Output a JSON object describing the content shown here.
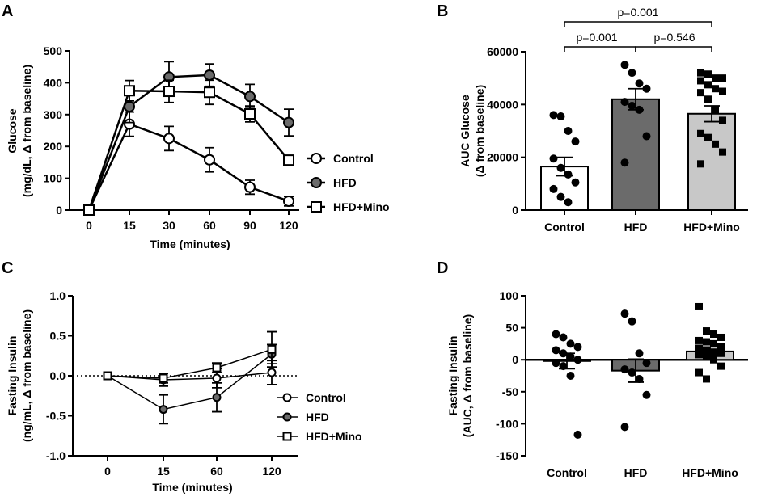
{
  "chart_data": [
    {
      "panel": "A",
      "type": "line",
      "x": [
        0,
        15,
        30,
        60,
        90,
        120
      ],
      "xticks": [
        "0",
        "15",
        "30",
        "60",
        "90",
        "120"
      ],
      "xlabel": "Time (minutes)",
      "ylabel": [
        "Glucose",
        "(mg/dL, Δ from baseline)"
      ],
      "ylim": [
        0,
        500
      ],
      "yticks": [
        0,
        100,
        200,
        300,
        400,
        500
      ],
      "series": [
        {
          "name": "Control",
          "marker": "circle-open",
          "values": [
            0,
            270,
            225,
            158,
            72,
            28
          ],
          "errors": [
            0,
            38,
            38,
            38,
            22,
            15
          ]
        },
        {
          "name": "HFD",
          "marker": "circle-filled",
          "values": [
            0,
            325,
            418,
            424,
            357,
            275
          ],
          "errors": [
            0,
            50,
            48,
            35,
            38,
            42
          ]
        },
        {
          "name": "HFD+Mino",
          "marker": "square-open",
          "values": [
            0,
            375,
            373,
            370,
            302,
            157
          ],
          "errors": [
            0,
            32,
            35,
            38,
            25,
            15
          ]
        }
      ]
    },
    {
      "panel": "B",
      "type": "bar",
      "categories": [
        "Control",
        "HFD",
        "HFD+Mino"
      ],
      "ylabel": [
        "AUC Glucose",
        "(Δ from baseline)"
      ],
      "ylim": [
        0,
        60000
      ],
      "yticks": [
        "0",
        "20000",
        "40000",
        "60000"
      ],
      "means": [
        16500,
        42000,
        36500
      ],
      "sems": [
        3500,
        4000,
        3000
      ],
      "bar_colors": [
        "#ffffff",
        "#6b6b6b",
        "#c8c8c8"
      ],
      "points": [
        [
          36000,
          35500,
          30000,
          26000,
          19500,
          16000,
          13500,
          10500,
          8000,
          5000,
          3000
        ],
        [
          55000,
          52000,
          48000,
          46000,
          41000,
          39500,
          38000,
          28000,
          18000
        ],
        [
          52000,
          51500,
          50000,
          50000,
          49000,
          47500,
          46000,
          45000,
          44500,
          42000,
          38000,
          34000,
          29000,
          27500,
          25000,
          22000,
          17500
        ]
      ],
      "comparisons": [
        {
          "groups": [
            "Control",
            "HFD+Mino"
          ],
          "label": "p=0.001"
        },
        {
          "groups": [
            "Control",
            "HFD"
          ],
          "label": "p=0.001"
        },
        {
          "groups": [
            "HFD",
            "HFD+Mino"
          ],
          "label": "p=0.546"
        }
      ]
    },
    {
      "panel": "C",
      "type": "line",
      "x": [
        0,
        15,
        60,
        120
      ],
      "xticks": [
        "0",
        "15",
        "60",
        "120"
      ],
      "xlabel": "Time (minutes)",
      "ylabel": [
        "Fasting Insulin",
        "(ng/mL, Δ from baseline)"
      ],
      "ylim": [
        -1.0,
        1.0
      ],
      "yticks": [
        "-1.0",
        "-0.5",
        "0.0",
        "0.5",
        "1.0"
      ],
      "reference_line": 0,
      "series": [
        {
          "name": "Control",
          "marker": "circle-open",
          "values": [
            0,
            -0.05,
            -0.03,
            0.04
          ],
          "errors": [
            0,
            0.08,
            0.12,
            0.15
          ]
        },
        {
          "name": "HFD",
          "marker": "circle-filled",
          "values": [
            0,
            -0.42,
            -0.27,
            0.27
          ],
          "errors": [
            0,
            0.18,
            0.18,
            0.12
          ]
        },
        {
          "name": "HFD+Mino",
          "marker": "square-open",
          "values": [
            0,
            -0.03,
            0.1,
            0.33
          ],
          "errors": [
            0,
            0.06,
            0.06,
            0.22
          ]
        }
      ]
    },
    {
      "panel": "D",
      "type": "bar",
      "categories": [
        "Control",
        "HFD",
        "HFD+Mino"
      ],
      "ylabel": [
        "Fasting Insulin",
        "(AUC, Δ from baseline)"
      ],
      "ylim": [
        -150,
        100
      ],
      "yticks": [
        "-150",
        "-100",
        "-50",
        "0",
        "50",
        "100"
      ],
      "means": [
        -2,
        -17,
        13
      ],
      "sems": [
        12,
        18,
        7
      ],
      "bar_colors": [
        "#ffffff",
        "#6b6b6b",
        "#c8c8c8"
      ],
      "points": [
        [
          40,
          35,
          25,
          20,
          15,
          10,
          5,
          0,
          -5,
          -10,
          -25,
          -117
        ],
        [
          72,
          60,
          10,
          -5,
          -15,
          -20,
          -30,
          -55,
          -105
        ],
        [
          83,
          45,
          40,
          35,
          30,
          28,
          25,
          20,
          18,
          15,
          12,
          10,
          8,
          5,
          0,
          -10,
          -20,
          -30
        ]
      ]
    }
  ]
}
